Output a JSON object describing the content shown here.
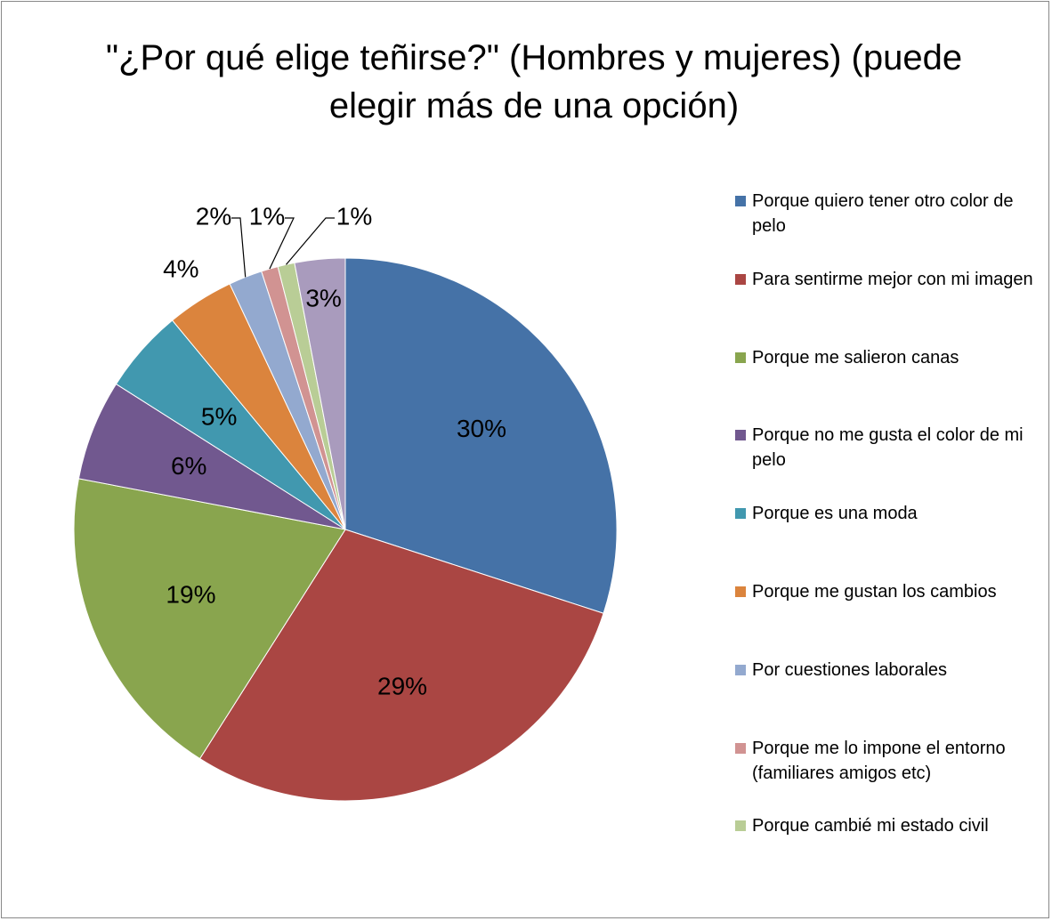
{
  "chart_data": {
    "type": "pie",
    "title": "\"¿Por qué elige teñirse?\" (Hombres y mujeres) (puede elegir más de una opción)",
    "categories": [
      "Porque quiero tener otro color de pelo",
      "Para sentirme mejor con mi imagen",
      "Porque me salieron canas",
      "Porque no me gusta el color de  mi pelo",
      "Porque es una moda",
      "Porque me gustan los cambios",
      "Por cuestiones laborales",
      "Porque me lo impone el entorno (familiares amigos etc)",
      "Porque cambié mi estado civil",
      null
    ],
    "values": [
      30,
      29,
      19,
      6,
      5,
      4,
      2,
      1,
      1,
      3
    ],
    "value_labels": [
      "30%",
      "29%",
      "19%",
      "6%",
      "5%",
      "4%",
      "2%",
      "1%",
      "1%",
      "3%"
    ],
    "colors": [
      "#4572a7",
      "#aa4643",
      "#89a54e",
      "#71588f",
      "#4198af",
      "#db843d",
      "#93a9cf",
      "#d19392",
      "#b9cd96",
      "#a99bbd"
    ],
    "legend": "right"
  }
}
